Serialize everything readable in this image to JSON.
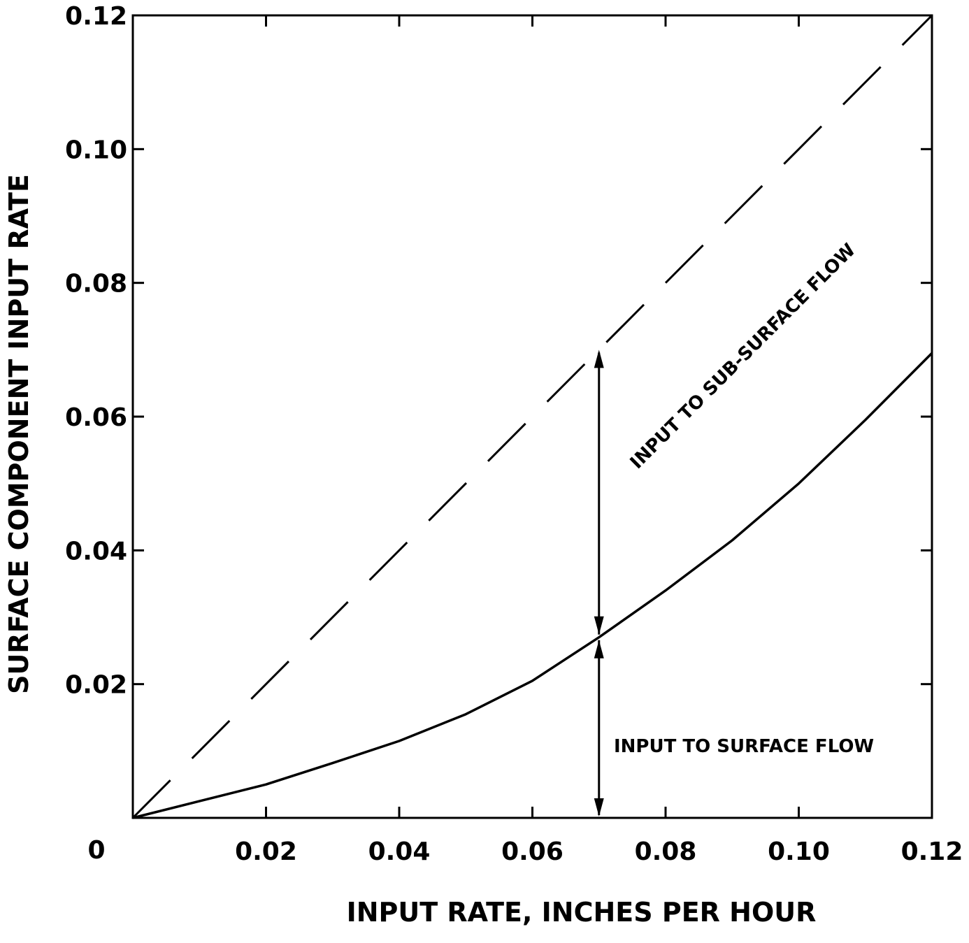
{
  "chart_data": {
    "type": "line",
    "xlabel": "INPUT RATE, INCHES PER HOUR",
    "ylabel": "SURFACE COMPONENT INPUT RATE",
    "xlim": [
      0,
      0.12
    ],
    "ylim": [
      0,
      0.12
    ],
    "x_ticks": [
      0.02,
      0.04,
      0.06,
      0.08,
      0.1,
      0.12
    ],
    "x_tick_labels": [
      "0.02",
      "0.04",
      "0.06",
      "0.08",
      "0.10",
      "0.12"
    ],
    "y_ticks": [
      0.02,
      0.04,
      0.06,
      0.08,
      0.1,
      0.12
    ],
    "y_tick_labels": [
      "0.02",
      "0.04",
      "0.06",
      "0.08",
      "0.10",
      "0.12"
    ],
    "origin_label": "0",
    "grid": false,
    "series": [
      {
        "style": "dashed",
        "x": [
          0,
          0.12
        ],
        "y": [
          0,
          0.12
        ]
      },
      {
        "style": "solid",
        "x": [
          0,
          0.01,
          0.02,
          0.03,
          0.04,
          0.05,
          0.06,
          0.07,
          0.08,
          0.09,
          0.1,
          0.11,
          0.12
        ],
        "y": [
          0,
          0.0025,
          0.005,
          0.0082,
          0.0115,
          0.0155,
          0.0205,
          0.027,
          0.034,
          0.0415,
          0.05,
          0.0595,
          0.0695
        ]
      }
    ],
    "annotations": [
      {
        "text": "INPUT TO SUB-SURFACE FLOW",
        "arrow_x": 0.07,
        "arrow_y_range": [
          0.027,
          0.07
        ]
      },
      {
        "text": "INPUT TO SURFACE FLOW",
        "arrow_x": 0.07,
        "arrow_y_range": [
          0,
          0.027
        ]
      }
    ]
  }
}
